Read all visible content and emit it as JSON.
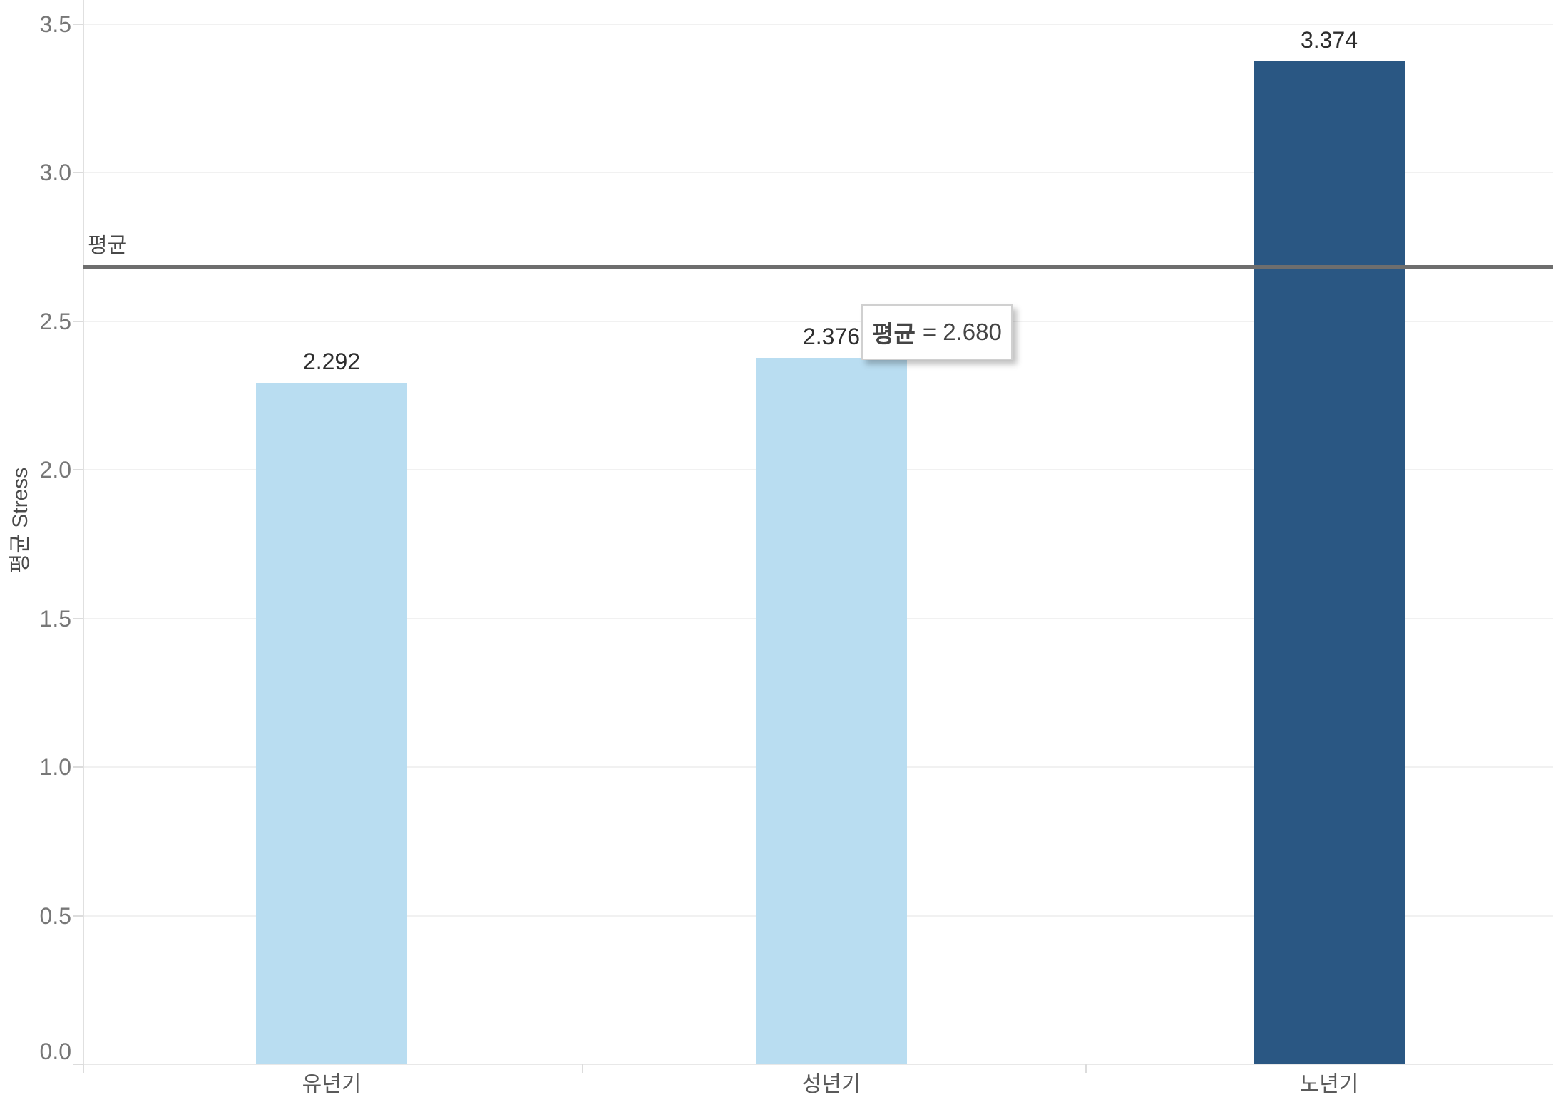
{
  "chart_data": {
    "type": "bar",
    "title": "",
    "categories": [
      "유년기",
      "성년기",
      "노년기"
    ],
    "values": [
      2.292,
      2.376,
      3.374
    ],
    "value_labels": [
      "2.292",
      "2.376",
      "3.374"
    ],
    "bar_colors": [
      "#b9ddf1",
      "#b9ddf1",
      "#2a5783"
    ],
    "xlabel": "",
    "ylabel": "평균 Stress",
    "ylim": [
      0,
      3.5
    ],
    "y_ticks": [
      3.5,
      3.0,
      2.5,
      2.0,
      1.5,
      1.0,
      0.5,
      0.0
    ],
    "y_tick_labels": [
      "3.5",
      "3.0",
      "2.5",
      "2.0",
      "1.5",
      "1.0",
      "0.5",
      "0.0"
    ],
    "grid": true,
    "legend": "none",
    "reference_line": {
      "label": "평균",
      "value": 2.68,
      "value_label": "2.680"
    },
    "tooltip": {
      "label": "평균",
      "value_text": "= 2.680",
      "full_text": "평균 = 2.680"
    }
  },
  "colors": {
    "bar_light": "#b9ddf1",
    "bar_dark": "#2a5783",
    "gridline": "#f1f1f1",
    "axis_line": "#e0e0e0",
    "tick_label": "#777777",
    "category_label": "#5a5a5a",
    "data_label": "#2e2e2e",
    "reference_line": "#6e6e6e",
    "background": "#ffffff"
  }
}
